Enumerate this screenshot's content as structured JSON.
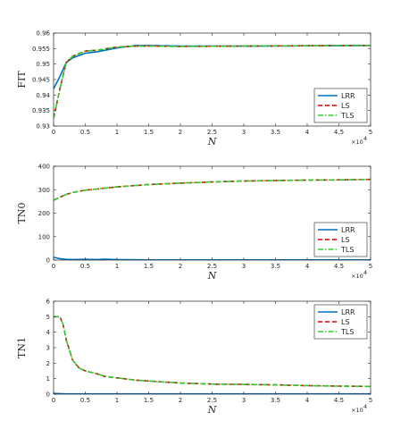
{
  "colors": {
    "LRR": "#0072BD",
    "LS": "#D00000",
    "TLS": "#33CC33",
    "axis": "#262626"
  },
  "chart_data": [
    {
      "type": "line",
      "ylabel": "FIT",
      "xlabel": "N",
      "x_multiplier": "×10",
      "x_exponent": "4",
      "xlim": [
        0,
        5
      ],
      "ylim": [
        0.93,
        0.96
      ],
      "xticks": [
        "0",
        "0.5",
        "1",
        "1.5",
        "2",
        "2.5",
        "3",
        "3.5",
        "4",
        "4.5",
        "5"
      ],
      "yticks": [
        "0.93",
        "0.935",
        "0.94",
        "0.945",
        "0.95",
        "0.955",
        "0.96"
      ],
      "legend_position": "bottom-right",
      "series": [
        {
          "name": "LRR",
          "style": "solid",
          "x": [
            0,
            0.1,
            0.2,
            0.3,
            0.5,
            0.7,
            1,
            1.3,
            1.5,
            2,
            3,
            4,
            5
          ],
          "y": [
            0.942,
            0.946,
            0.9505,
            0.952,
            0.9535,
            0.954,
            0.9552,
            0.956,
            0.956,
            0.9558,
            0.9558,
            0.9559,
            0.956
          ]
        },
        {
          "name": "LS",
          "style": "dashed",
          "x": [
            0,
            0.1,
            0.2,
            0.3,
            0.5,
            0.7,
            1,
            1.3,
            1.5,
            2,
            3,
            4,
            5
          ],
          "y": [
            0.9325,
            0.942,
            0.9505,
            0.9525,
            0.9542,
            0.9545,
            0.9555,
            0.9558,
            0.9558,
            0.9557,
            0.9558,
            0.9559,
            0.956
          ]
        },
        {
          "name": "TLS",
          "style": "dashdot",
          "x": [
            0,
            0.1,
            0.2,
            0.3,
            0.5,
            0.7,
            1,
            1.3,
            1.5,
            2,
            3,
            4,
            5
          ],
          "y": [
            0.9325,
            0.942,
            0.9505,
            0.9525,
            0.9542,
            0.9545,
            0.9555,
            0.9558,
            0.9558,
            0.9557,
            0.9558,
            0.9559,
            0.956
          ]
        }
      ]
    },
    {
      "type": "line",
      "ylabel": "TN0",
      "xlabel": "N",
      "x_multiplier": "×10",
      "x_exponent": "4",
      "xlim": [
        0,
        5
      ],
      "ylim": [
        0,
        400
      ],
      "xticks": [
        "0",
        "0.5",
        "1",
        "1.5",
        "2",
        "2.5",
        "3",
        "3.5",
        "4",
        "4.5",
        "5"
      ],
      "yticks": [
        "0",
        "100",
        "200",
        "300",
        "400"
      ],
      "legend_position": "bottom-right",
      "series": [
        {
          "name": "LRR",
          "style": "solid",
          "x": [
            0,
            0.1,
            0.2,
            0.3,
            0.5,
            0.7,
            0.8,
            1,
            1.5,
            2,
            3,
            4,
            5
          ],
          "y": [
            12,
            6,
            3,
            2,
            3,
            2,
            4,
            2,
            1,
            1,
            1,
            1,
            1
          ]
        },
        {
          "name": "LS",
          "style": "dashed",
          "x": [
            0,
            0.1,
            0.2,
            0.3,
            0.5,
            1,
            1.5,
            2,
            2.5,
            3,
            3.5,
            4,
            4.5,
            5
          ],
          "y": [
            255,
            268,
            280,
            288,
            298,
            312,
            322,
            328,
            333,
            337,
            339,
            341,
            342,
            344
          ]
        },
        {
          "name": "TLS",
          "style": "dashdot",
          "x": [
            0,
            0.1,
            0.2,
            0.3,
            0.5,
            1,
            1.5,
            2,
            2.5,
            3,
            3.5,
            4,
            4.5,
            5
          ],
          "y": [
            255,
            268,
            280,
            288,
            298,
            312,
            322,
            328,
            333,
            337,
            339,
            341,
            342,
            344
          ]
        }
      ]
    },
    {
      "type": "line",
      "ylabel": "TN1",
      "xlabel": "N",
      "x_multiplier": "×10",
      "x_exponent": "4",
      "xlim": [
        0,
        5
      ],
      "ylim": [
        0,
        6
      ],
      "xticks": [
        "0",
        "0.5",
        "1",
        "1.5",
        "2",
        "2.5",
        "3",
        "3.5",
        "4",
        "4.5",
        "5"
      ],
      "yticks": [
        "0",
        "1",
        "2",
        "3",
        "4",
        "5",
        "6"
      ],
      "legend_position": "top-right",
      "series": [
        {
          "name": "LRR",
          "style": "solid",
          "x": [
            0,
            0.1,
            0.2,
            0.5,
            1,
            2,
            3,
            4,
            5
          ],
          "y": [
            0.05,
            0.03,
            0.02,
            0.02,
            0.02,
            0.02,
            0.02,
            0.02,
            0.02
          ]
        },
        {
          "name": "LS",
          "style": "dashed",
          "x": [
            0,
            0.1,
            0.15,
            0.2,
            0.3,
            0.4,
            0.5,
            0.7,
            0.8,
            1,
            1.3,
            1.5,
            2,
            2.5,
            3,
            3.5,
            4,
            4.5,
            5
          ],
          "y": [
            5.0,
            5.0,
            4.5,
            3.5,
            2.2,
            1.7,
            1.5,
            1.3,
            1.15,
            1.05,
            0.9,
            0.85,
            0.72,
            0.65,
            0.63,
            0.6,
            0.55,
            0.52,
            0.5
          ]
        },
        {
          "name": "TLS",
          "style": "dashdot",
          "x": [
            0,
            0.1,
            0.15,
            0.2,
            0.3,
            0.4,
            0.5,
            0.7,
            0.8,
            1,
            1.3,
            1.5,
            2,
            2.5,
            3,
            3.5,
            4,
            4.5,
            5
          ],
          "y": [
            5.0,
            5.0,
            4.5,
            3.5,
            2.2,
            1.7,
            1.5,
            1.3,
            1.15,
            1.05,
            0.9,
            0.85,
            0.72,
            0.65,
            0.63,
            0.6,
            0.55,
            0.52,
            0.5
          ]
        }
      ]
    }
  ]
}
